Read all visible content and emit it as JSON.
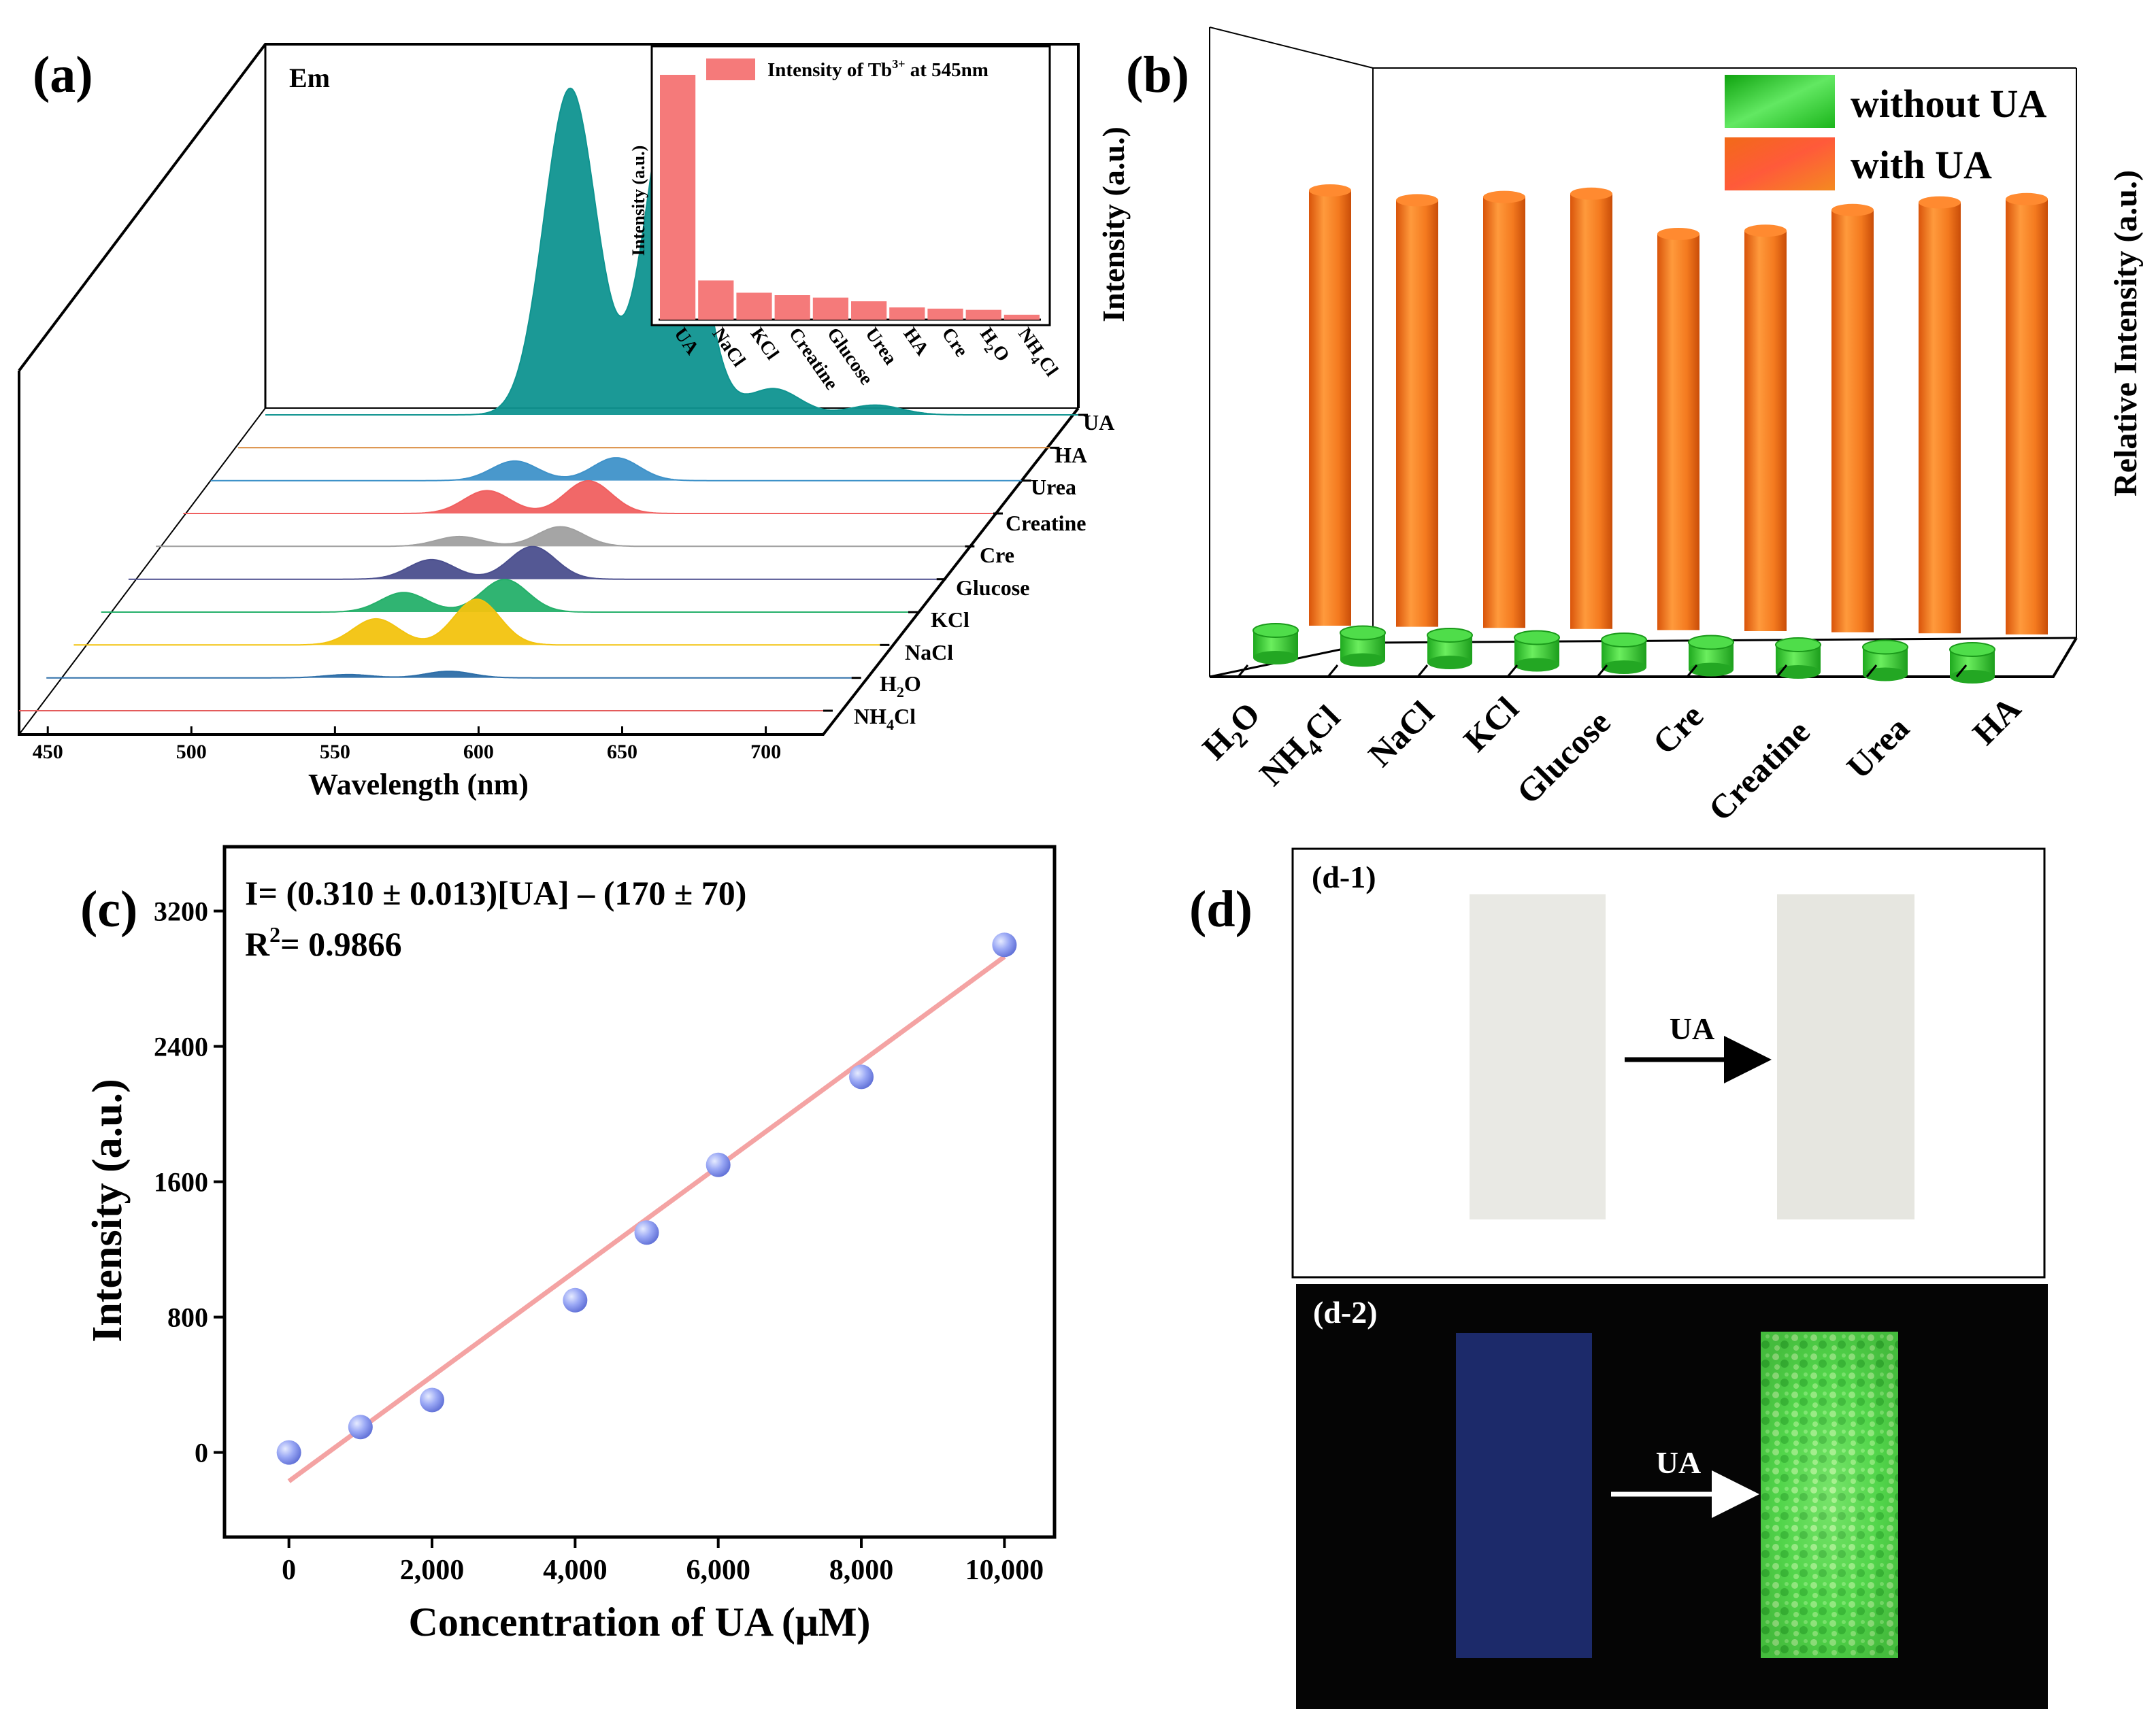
{
  "panels": {
    "a_label": "(a)",
    "b_label": "(b)",
    "c_label": "(c)",
    "d_label": "(d)"
  },
  "colors": {
    "teal": "#0f9490",
    "orange": "#f47a1f",
    "green": "#3ccf3c",
    "salmon": "#f57a7a",
    "pinkline": "#f4a3a3",
    "point": "#9aa7f2"
  },
  "chart_data": [
    {
      "id": "a",
      "type": "line",
      "title": "Em",
      "xlabel": "Wavelength (nm)",
      "xlim": [
        440,
        720
      ],
      "xticks": [
        450,
        500,
        550,
        600,
        650,
        700
      ],
      "series": [
        {
          "name": "UA",
          "color": "#0f9490",
          "peaks": [
            [
              545,
              1.0
            ],
            [
              580,
              1.0
            ],
            [
              615,
              0.08
            ],
            [
              650,
              0.03
            ]
          ]
        },
        {
          "name": "HA",
          "color": "#d9893b",
          "peaks": []
        },
        {
          "name": "Urea",
          "color": "#3f92c9",
          "peaks": [
            [
              545,
              0.06
            ],
            [
              580,
              0.07
            ]
          ]
        },
        {
          "name": "Creatine",
          "color": "#f06060",
          "peaks": [
            [
              545,
              0.07
            ],
            [
              580,
              0.1
            ]
          ]
        },
        {
          "name": "Cre",
          "color": "#a0a0a0",
          "peaks": [
            [
              545,
              0.03
            ],
            [
              580,
              0.06
            ]
          ]
        },
        {
          "name": "Glucose",
          "color": "#4b4f8e",
          "peaks": [
            [
              545,
              0.06
            ],
            [
              580,
              0.1
            ]
          ]
        },
        {
          "name": "KCl",
          "color": "#25b06a",
          "peaks": [
            [
              545,
              0.06
            ],
            [
              580,
              0.1
            ]
          ]
        },
        {
          "name": "NaCl",
          "color": "#f2c30f",
          "peaks": [
            [
              545,
              0.08
            ],
            [
              580,
              0.14
            ]
          ]
        },
        {
          "name": "H2O",
          "color": "#2d6ea8",
          "peaks": [
            [
              545,
              0.01
            ],
            [
              580,
              0.02
            ]
          ]
        },
        {
          "name": "NH4Cl",
          "color": "#e35b5b",
          "peaks": []
        }
      ],
      "series_labels": [
        "UA",
        "HA",
        "Urea",
        "Creatine",
        "Cre",
        "Glucose",
        "KCl",
        "NaCl",
        "H",
        "O",
        "NH",
        "Cl"
      ],
      "inset": {
        "type": "bar",
        "legend": "Intensity of Tb",
        "legend_sup": "3+",
        "legend_tail": " at 545nm",
        "ylabel": "Intensity (a.u.)",
        "categories": [
          "UA",
          "NaCl",
          "KCl",
          "Creatine",
          "Glucose",
          "Urea",
          "HA",
          "Cre",
          "H2O",
          "NH4Cl"
        ],
        "values": [
          1.0,
          0.16,
          0.11,
          0.1,
          0.09,
          0.075,
          0.05,
          0.045,
          0.04,
          0.02
        ],
        "ylim": [
          0,
          1.05
        ]
      }
    },
    {
      "id": "b",
      "type": "bar",
      "ylabel": "Intensity (a.u.)",
      "y2label": "Relative Intensity (a.u.)",
      "categories": [
        "H2O",
        "NH4Cl",
        "NaCl",
        "KCl",
        "Glucose",
        "Cre",
        "Creatine",
        "Urea",
        "HA"
      ],
      "category_labels": [
        "H",
        "O",
        "NH",
        "Cl",
        "NaCl",
        "KCl",
        "Glucose",
        "Cre",
        "Creatine",
        "Urea",
        "HA"
      ],
      "series": [
        {
          "name": "without UA",
          "values": [
            0.05,
            0.05,
            0.05,
            0.05,
            0.05,
            0.05,
            0.05,
            0.05,
            0.05
          ]
        },
        {
          "name": "with UA",
          "values": [
            1.0,
            0.98,
            0.99,
            1.0,
            0.91,
            0.92,
            0.97,
            0.99,
            1.0
          ]
        }
      ]
    },
    {
      "id": "c",
      "type": "scatter",
      "equation_lhs": "I= (0.310 ± 0.013)[UA] – (170 ± 70)",
      "r2_label": "R",
      "r2_value": "= 0.9866",
      "xlabel": "Concentration of UA (μM)",
      "ylabel": "Intensity (a.u.)",
      "xlim": [
        -900,
        10700
      ],
      "ylim": [
        -500,
        3580
      ],
      "xticks": [
        0,
        2000,
        4000,
        6000,
        8000,
        10000
      ],
      "xtick_labels": [
        "0",
        "2,000",
        "4,000",
        "6,000",
        "8,000",
        "10,000"
      ],
      "yticks": [
        0,
        800,
        1600,
        2400,
        3200
      ],
      "ytick_labels": [
        "0",
        "800",
        "1600",
        "2400",
        "3200"
      ],
      "x": [
        0,
        1000,
        2000,
        4000,
        5000,
        6000,
        8000,
        10000
      ],
      "y": [
        0,
        150,
        310,
        900,
        1300,
        1700,
        2220,
        3000
      ],
      "fit": {
        "slope": 0.31,
        "intercept": -170
      }
    }
  ],
  "d_panel": {
    "d1_label": "(d-1)",
    "d2_label": "(d-2)",
    "arrow1": "UA",
    "arrow2": "UA"
  }
}
